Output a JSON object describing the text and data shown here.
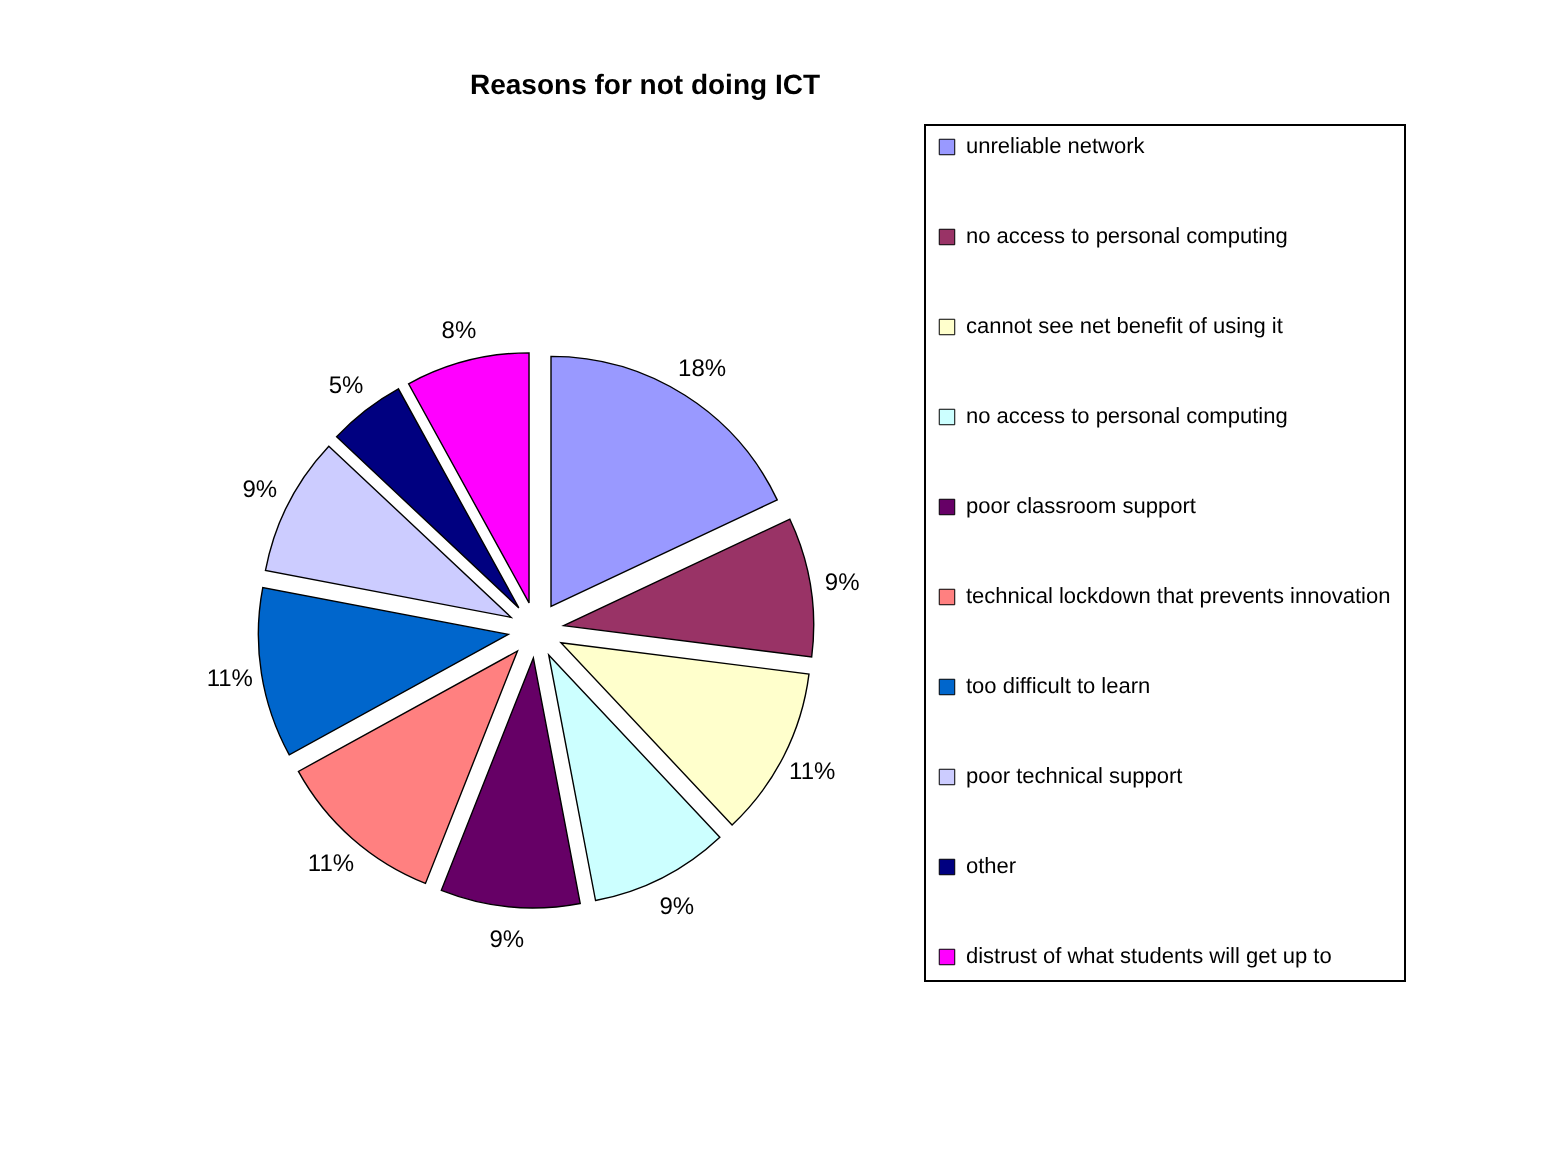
{
  "chart_data": {
    "type": "pie",
    "title": "Reasons for not doing ICT",
    "categories": [
      "unreliable network",
      "no access to personal computing",
      "cannot see net benefit of using it",
      "no access to personal computing",
      "poor classroom support",
      "technical lockdown that prevents innovation",
      "too difficult to learn",
      "poor technical support",
      "other",
      "distrust of what students will get up to"
    ],
    "values": [
      18,
      9,
      11,
      9,
      9,
      11,
      11,
      9,
      5,
      8
    ],
    "value_labels": [
      "18%",
      "9%",
      "11%",
      "9%",
      "9%",
      "11%",
      "11%",
      "9%",
      "5%",
      "8%"
    ],
    "colors": [
      "#9999ff",
      "#993366",
      "#ffffcc",
      "#ccffff",
      "#660066",
      "#ff8080",
      "#0066cc",
      "#ccccff",
      "#000080",
      "#ff00ff"
    ],
    "legend": "right"
  }
}
